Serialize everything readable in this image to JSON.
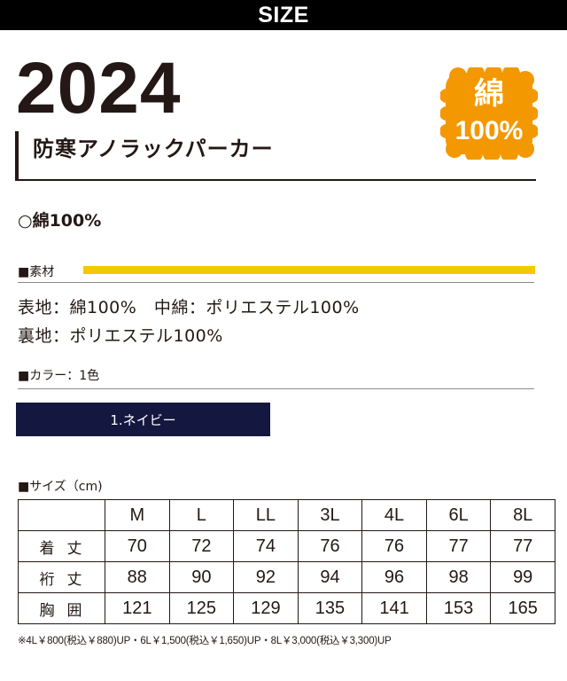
{
  "header": {
    "label": "SIZE"
  },
  "product": {
    "model": "2024",
    "name": "防寒アノラックパーカー"
  },
  "badge": {
    "line1": "綿",
    "line2": "100%",
    "color": "#f39800"
  },
  "fabric_summary": "○綿100%",
  "material_section": {
    "label": "■素材",
    "accent_color": "#f5c800",
    "lines": [
      "表地：綿100%　中綿：ポリエステル100%",
      "裏地：ポリエステル100%"
    ]
  },
  "color_section": {
    "label": "■カラー：1色",
    "colors": [
      {
        "name": "1.ネイビー",
        "hex": "#14173f"
      }
    ]
  },
  "size_section": {
    "label": "■サイズ（cm)",
    "headers": [
      "M",
      "L",
      "LL",
      "3L",
      "4L",
      "6L",
      "8L"
    ],
    "rows": [
      {
        "label": "着丈",
        "values": [
          "70",
          "72",
          "74",
          "76",
          "76",
          "77",
          "77"
        ]
      },
      {
        "label": "裄丈",
        "values": [
          "88",
          "90",
          "92",
          "94",
          "96",
          "98",
          "99"
        ]
      },
      {
        "label": "胸囲",
        "values": [
          "121",
          "125",
          "129",
          "135",
          "141",
          "153",
          "165"
        ]
      }
    ]
  },
  "price_note": "※4L￥800(税込￥880)UP・6L￥1,500(税込￥1,650)UP・8L￥3,000(税込￥3,300)UP"
}
